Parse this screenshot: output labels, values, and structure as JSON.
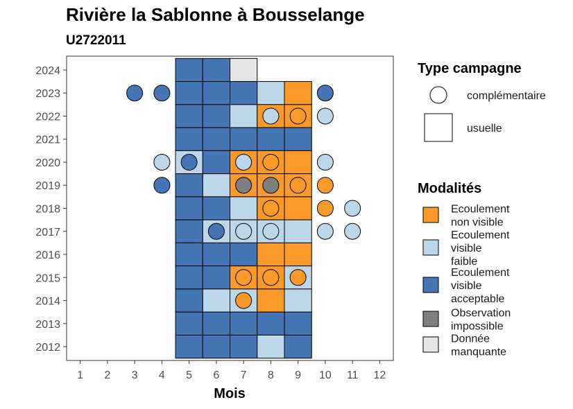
{
  "chart_data": {
    "type": "heatmap",
    "title": "Rivière la Sablonne à Bousselange",
    "subtitle": "U2722011",
    "xlabel": "Mois",
    "ylabel": "",
    "x_ticks": [
      "1",
      "2",
      "3",
      "4",
      "5",
      "6",
      "7",
      "8",
      "9",
      "10",
      "11",
      "12"
    ],
    "y_ticks": [
      "2012",
      "2013",
      "2014",
      "2015",
      "2016",
      "2017",
      "2018",
      "2019",
      "2020",
      "2021",
      "2022",
      "2023",
      "2024"
    ],
    "xlim": [
      0.5,
      12.5
    ],
    "ylim": [
      2011.4,
      2024.6
    ],
    "grid": false,
    "colors": {
      "Ecoulement non visible": "#fb9a29",
      "Ecoulement visible faible": "#bcd7e9",
      "Ecoulement visible acceptable": "#4575b4",
      "Observation impossible": "#7f7f7f",
      "Donnée manquante": "#e5e5e5"
    },
    "usuelle": [
      {
        "year": 2024,
        "month": 5,
        "cat": "Ecoulement visible acceptable"
      },
      {
        "year": 2024,
        "month": 6,
        "cat": "Ecoulement visible acceptable"
      },
      {
        "year": 2024,
        "month": 7,
        "cat": "Donnée manquante"
      },
      {
        "year": 2023,
        "month": 5,
        "cat": "Ecoulement visible acceptable"
      },
      {
        "year": 2023,
        "month": 6,
        "cat": "Ecoulement visible acceptable"
      },
      {
        "year": 2023,
        "month": 7,
        "cat": "Ecoulement visible acceptable"
      },
      {
        "year": 2023,
        "month": 8,
        "cat": "Ecoulement visible faible"
      },
      {
        "year": 2023,
        "month": 9,
        "cat": "Ecoulement non visible"
      },
      {
        "year": 2022,
        "month": 5,
        "cat": "Ecoulement visible acceptable"
      },
      {
        "year": 2022,
        "month": 6,
        "cat": "Ecoulement visible acceptable"
      },
      {
        "year": 2022,
        "month": 7,
        "cat": "Ecoulement visible faible"
      },
      {
        "year": 2022,
        "month": 8,
        "cat": "Ecoulement non visible"
      },
      {
        "year": 2022,
        "month": 9,
        "cat": "Ecoulement non visible"
      },
      {
        "year": 2021,
        "month": 5,
        "cat": "Ecoulement visible acceptable"
      },
      {
        "year": 2021,
        "month": 6,
        "cat": "Ecoulement visible acceptable"
      },
      {
        "year": 2021,
        "month": 7,
        "cat": "Ecoulement visible acceptable"
      },
      {
        "year": 2021,
        "month": 8,
        "cat": "Ecoulement visible acceptable"
      },
      {
        "year": 2021,
        "month": 9,
        "cat": "Ecoulement visible acceptable"
      },
      {
        "year": 2020,
        "month": 5,
        "cat": "Ecoulement visible faible"
      },
      {
        "year": 2020,
        "month": 6,
        "cat": "Ecoulement visible acceptable"
      },
      {
        "year": 2020,
        "month": 7,
        "cat": "Ecoulement non visible"
      },
      {
        "year": 2020,
        "month": 8,
        "cat": "Ecoulement non visible"
      },
      {
        "year": 2020,
        "month": 9,
        "cat": "Ecoulement non visible"
      },
      {
        "year": 2019,
        "month": 5,
        "cat": "Ecoulement visible acceptable"
      },
      {
        "year": 2019,
        "month": 6,
        "cat": "Ecoulement visible faible"
      },
      {
        "year": 2019,
        "month": 7,
        "cat": "Ecoulement non visible"
      },
      {
        "year": 2019,
        "month": 8,
        "cat": "Ecoulement non visible"
      },
      {
        "year": 2019,
        "month": 9,
        "cat": "Ecoulement non visible"
      },
      {
        "year": 2018,
        "month": 5,
        "cat": "Ecoulement visible acceptable"
      },
      {
        "year": 2018,
        "month": 6,
        "cat": "Ecoulement visible acceptable"
      },
      {
        "year": 2018,
        "month": 7,
        "cat": "Ecoulement visible faible"
      },
      {
        "year": 2018,
        "month": 8,
        "cat": "Ecoulement non visible"
      },
      {
        "year": 2018,
        "month": 9,
        "cat": "Ecoulement non visible"
      },
      {
        "year": 2017,
        "month": 5,
        "cat": "Ecoulement visible acceptable"
      },
      {
        "year": 2017,
        "month": 6,
        "cat": "Ecoulement visible faible"
      },
      {
        "year": 2017,
        "month": 7,
        "cat": "Ecoulement visible faible"
      },
      {
        "year": 2017,
        "month": 8,
        "cat": "Ecoulement visible faible"
      },
      {
        "year": 2017,
        "month": 9,
        "cat": "Ecoulement visible faible"
      },
      {
        "year": 2016,
        "month": 5,
        "cat": "Ecoulement visible acceptable"
      },
      {
        "year": 2016,
        "month": 6,
        "cat": "Ecoulement visible acceptable"
      },
      {
        "year": 2016,
        "month": 7,
        "cat": "Ecoulement visible acceptable"
      },
      {
        "year": 2016,
        "month": 8,
        "cat": "Ecoulement non visible"
      },
      {
        "year": 2016,
        "month": 9,
        "cat": "Ecoulement non visible"
      },
      {
        "year": 2015,
        "month": 5,
        "cat": "Ecoulement visible acceptable"
      },
      {
        "year": 2015,
        "month": 6,
        "cat": "Ecoulement visible acceptable"
      },
      {
        "year": 2015,
        "month": 7,
        "cat": "Ecoulement non visible"
      },
      {
        "year": 2015,
        "month": 8,
        "cat": "Ecoulement non visible"
      },
      {
        "year": 2015,
        "month": 9,
        "cat": "Ecoulement visible faible"
      },
      {
        "year": 2014,
        "month": 5,
        "cat": "Ecoulement visible acceptable"
      },
      {
        "year": 2014,
        "month": 6,
        "cat": "Ecoulement visible faible"
      },
      {
        "year": 2014,
        "month": 7,
        "cat": "Ecoulement visible faible"
      },
      {
        "year": 2014,
        "month": 8,
        "cat": "Ecoulement non visible"
      },
      {
        "year": 2014,
        "month": 9,
        "cat": "Ecoulement visible faible"
      },
      {
        "year": 2013,
        "month": 5,
        "cat": "Ecoulement visible acceptable"
      },
      {
        "year": 2013,
        "month": 6,
        "cat": "Ecoulement visible acceptable"
      },
      {
        "year": 2013,
        "month": 7,
        "cat": "Ecoulement visible acceptable"
      },
      {
        "year": 2013,
        "month": 8,
        "cat": "Ecoulement visible acceptable"
      },
      {
        "year": 2013,
        "month": 9,
        "cat": "Ecoulement visible acceptable"
      },
      {
        "year": 2012,
        "month": 5,
        "cat": "Ecoulement visible acceptable"
      },
      {
        "year": 2012,
        "month": 6,
        "cat": "Ecoulement visible acceptable"
      },
      {
        "year": 2012,
        "month": 7,
        "cat": "Ecoulement visible acceptable"
      },
      {
        "year": 2012,
        "month": 8,
        "cat": "Ecoulement visible faible"
      },
      {
        "year": 2012,
        "month": 9,
        "cat": "Ecoulement visible acceptable"
      }
    ],
    "complementaire": [
      {
        "year": 2023,
        "month": 3,
        "cat": "Ecoulement visible acceptable"
      },
      {
        "year": 2023,
        "month": 4,
        "cat": "Ecoulement visible acceptable"
      },
      {
        "year": 2023,
        "month": 10,
        "cat": "Ecoulement visible acceptable"
      },
      {
        "year": 2022,
        "month": 8,
        "cat": "Ecoulement visible faible"
      },
      {
        "year": 2022,
        "month": 9,
        "cat": "Ecoulement non visible"
      },
      {
        "year": 2022,
        "month": 10,
        "cat": "Ecoulement visible faible"
      },
      {
        "year": 2020,
        "month": 4,
        "cat": "Ecoulement visible faible"
      },
      {
        "year": 2020,
        "month": 5,
        "cat": "Ecoulement visible acceptable"
      },
      {
        "year": 2020,
        "month": 7,
        "cat": "Ecoulement visible faible"
      },
      {
        "year": 2020,
        "month": 8,
        "cat": "Ecoulement non visible"
      },
      {
        "year": 2020,
        "month": 10,
        "cat": "Ecoulement visible faible"
      },
      {
        "year": 2019,
        "month": 4,
        "cat": "Ecoulement visible acceptable"
      },
      {
        "year": 2019,
        "month": 7,
        "cat": "Observation impossible"
      },
      {
        "year": 2019,
        "month": 8,
        "cat": "Observation impossible"
      },
      {
        "year": 2019,
        "month": 9,
        "cat": "Ecoulement non visible"
      },
      {
        "year": 2019,
        "month": 10,
        "cat": "Ecoulement non visible"
      },
      {
        "year": 2018,
        "month": 8,
        "cat": "Ecoulement non visible"
      },
      {
        "year": 2018,
        "month": 10,
        "cat": "Ecoulement non visible"
      },
      {
        "year": 2018,
        "month": 11,
        "cat": "Ecoulement visible faible"
      },
      {
        "year": 2017,
        "month": 6,
        "cat": "Ecoulement visible acceptable"
      },
      {
        "year": 2017,
        "month": 7,
        "cat": "Ecoulement visible faible"
      },
      {
        "year": 2017,
        "month": 8,
        "cat": "Ecoulement visible faible"
      },
      {
        "year": 2017,
        "month": 10,
        "cat": "Ecoulement visible faible"
      },
      {
        "year": 2017,
        "month": 11,
        "cat": "Ecoulement visible faible"
      },
      {
        "year": 2015,
        "month": 7,
        "cat": "Ecoulement non visible"
      },
      {
        "year": 2015,
        "month": 8,
        "cat": "Ecoulement non visible"
      },
      {
        "year": 2015,
        "month": 9,
        "cat": "Ecoulement non visible"
      },
      {
        "year": 2014,
        "month": 7,
        "cat": "Ecoulement non visible"
      }
    ]
  },
  "legend_type": {
    "title": "Type campagne",
    "items": [
      {
        "label": "complémentaire",
        "shape": "circle"
      },
      {
        "label": "usuelle",
        "shape": "square"
      }
    ]
  },
  "legend_modalites": {
    "title": "Modalités",
    "items": [
      {
        "lines": [
          "Ecoulement",
          "non visible"
        ],
        "color": "#fb9a29"
      },
      {
        "lines": [
          "Ecoulement",
          "visible",
          "faible"
        ],
        "color": "#bcd7e9"
      },
      {
        "lines": [
          "Ecoulement",
          "visible",
          "acceptable"
        ],
        "color": "#4575b4"
      },
      {
        "lines": [
          "Observation",
          "impossible"
        ],
        "color": "#7f7f7f"
      },
      {
        "lines": [
          "Donnée",
          "manquante"
        ],
        "color": "#e5e5e5"
      }
    ]
  }
}
